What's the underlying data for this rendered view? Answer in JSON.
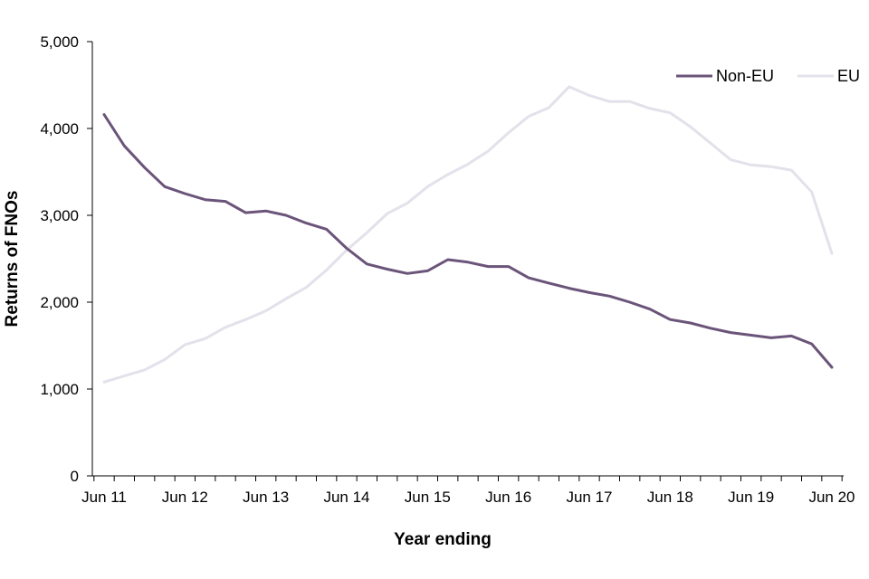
{
  "chart_data": {
    "type": "line",
    "title": "",
    "xlabel": "Year ending",
    "ylabel": "Returns of FNOs",
    "ylim": [
      0,
      5000
    ],
    "yticks": [
      0,
      1000,
      2000,
      3000,
      4000,
      5000
    ],
    "ytick_labels": [
      "0",
      "1,000",
      "2,000",
      "3,000",
      "4,000",
      "5,000"
    ],
    "xtick_labels": [
      "Jun 11",
      "Jun 12",
      "Jun 13",
      "Jun 14",
      "Jun 15",
      "Jun 16",
      "Jun 17",
      "Jun 18",
      "Jun 19",
      "Jun 20"
    ],
    "x": [
      "Jun 11",
      "Sep 11",
      "Dec 11",
      "Mar 12",
      "Jun 12",
      "Sep 12",
      "Dec 12",
      "Mar 13",
      "Jun 13",
      "Sep 13",
      "Dec 13",
      "Mar 14",
      "Jun 14",
      "Sep 14",
      "Dec 14",
      "Mar 15",
      "Jun 15",
      "Sep 15",
      "Dec 15",
      "Mar 16",
      "Jun 16",
      "Sep 16",
      "Dec 16",
      "Mar 17",
      "Jun 17",
      "Sep 17",
      "Dec 17",
      "Mar 18",
      "Jun 18",
      "Sep 18",
      "Dec 18",
      "Mar 19",
      "Jun 19",
      "Sep 19",
      "Dec 19",
      "Mar 20",
      "Jun 20"
    ],
    "grid": false,
    "legend_position": "top-right",
    "series": [
      {
        "name": "Non-EU",
        "color": "#6b5479",
        "values": [
          4160,
          3800,
          3550,
          3330,
          3250,
          3180,
          3160,
          3030,
          3050,
          3000,
          2910,
          2840,
          2620,
          2440,
          2380,
          2330,
          2360,
          2490,
          2460,
          2410,
          2410,
          2280,
          2220,
          2160,
          2110,
          2070,
          2000,
          1920,
          1800,
          1760,
          1700,
          1650,
          1620,
          1590,
          1610,
          1520,
          1250
        ]
      },
      {
        "name": "EU",
        "color": "#e3e1ea",
        "values": [
          1080,
          1150,
          1220,
          1340,
          1510,
          1580,
          1710,
          1800,
          1900,
          2040,
          2170,
          2370,
          2600,
          2800,
          3020,
          3140,
          3330,
          3470,
          3590,
          3740,
          3950,
          4140,
          4240,
          4480,
          4380,
          4310,
          4310,
          4230,
          4180,
          4020,
          3830,
          3640,
          3580,
          3560,
          3520,
          3270,
          2560
        ]
      }
    ]
  }
}
